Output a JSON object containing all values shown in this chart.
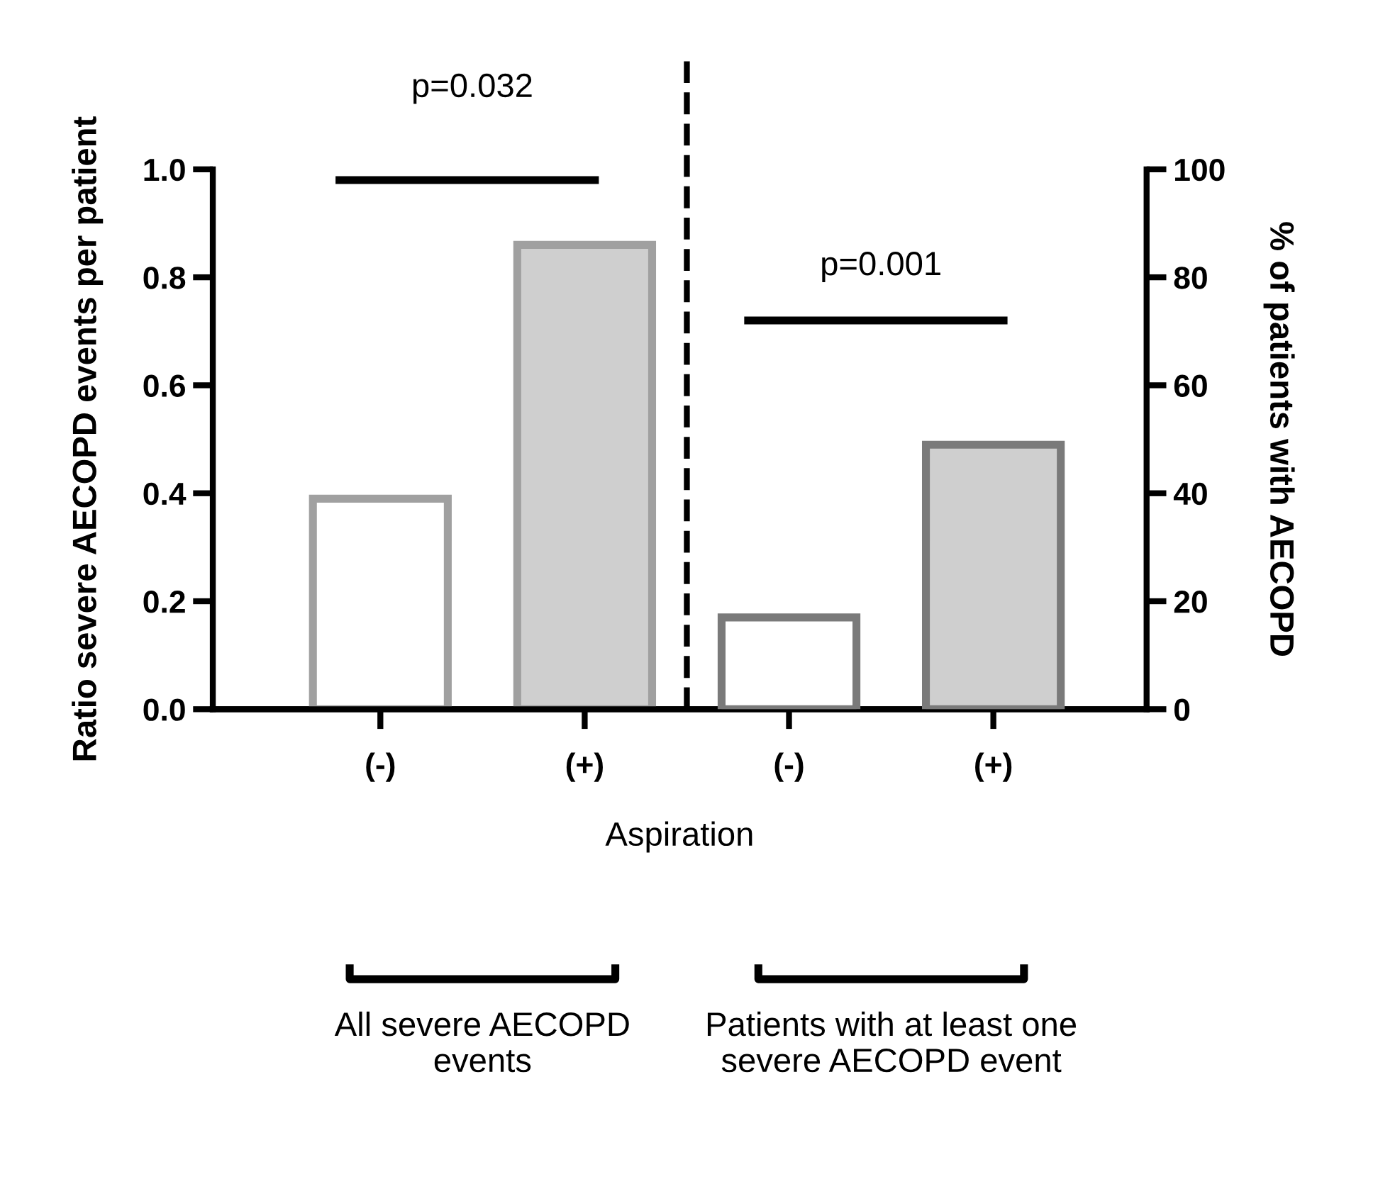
{
  "chart_data": {
    "type": "bar",
    "categories": [
      "(-)",
      "(+)",
      "(-)",
      "(+)"
    ],
    "series": [
      {
        "color": "#a0a0a0",
        "colors": [
          "#ffffff",
          "#cfcfcf",
          null,
          null
        ],
        "values": [
          0.39,
          0.86,
          null,
          null
        ]
      },
      {
        "color": "#7a7a7a",
        "colors": [
          null,
          null,
          "#ffffff",
          "#cfcfcf"
        ],
        "values": [
          null,
          null,
          17,
          49
        ],
        "axis": "y2"
      }
    ],
    "xlabel": "Aspiration",
    "ylabel": "Ratio severe AECOPD events per patient",
    "y2label": "% of patients with AECOPD",
    "ylim": [
      0,
      1
    ],
    "yticks": [
      {
        "value": 0,
        "label": "0.0"
      },
      {
        "value": 0.2,
        "label": "0.2"
      },
      {
        "value": 0.4,
        "label": "0.4"
      },
      {
        "value": 0.6,
        "label": "0.6"
      },
      {
        "value": 0.8,
        "label": "0.8"
      },
      {
        "value": 1,
        "label": "1.0"
      }
    ],
    "y2lim": [
      0,
      100
    ],
    "y2ticks": [
      0,
      20,
      40,
      60,
      80,
      100
    ],
    "annotations": [
      "p=0.032",
      "p=0.001",
      "All severe AECOPD events",
      "Patients with at least one severe AECOPD event"
    ],
    "grid": false
  }
}
